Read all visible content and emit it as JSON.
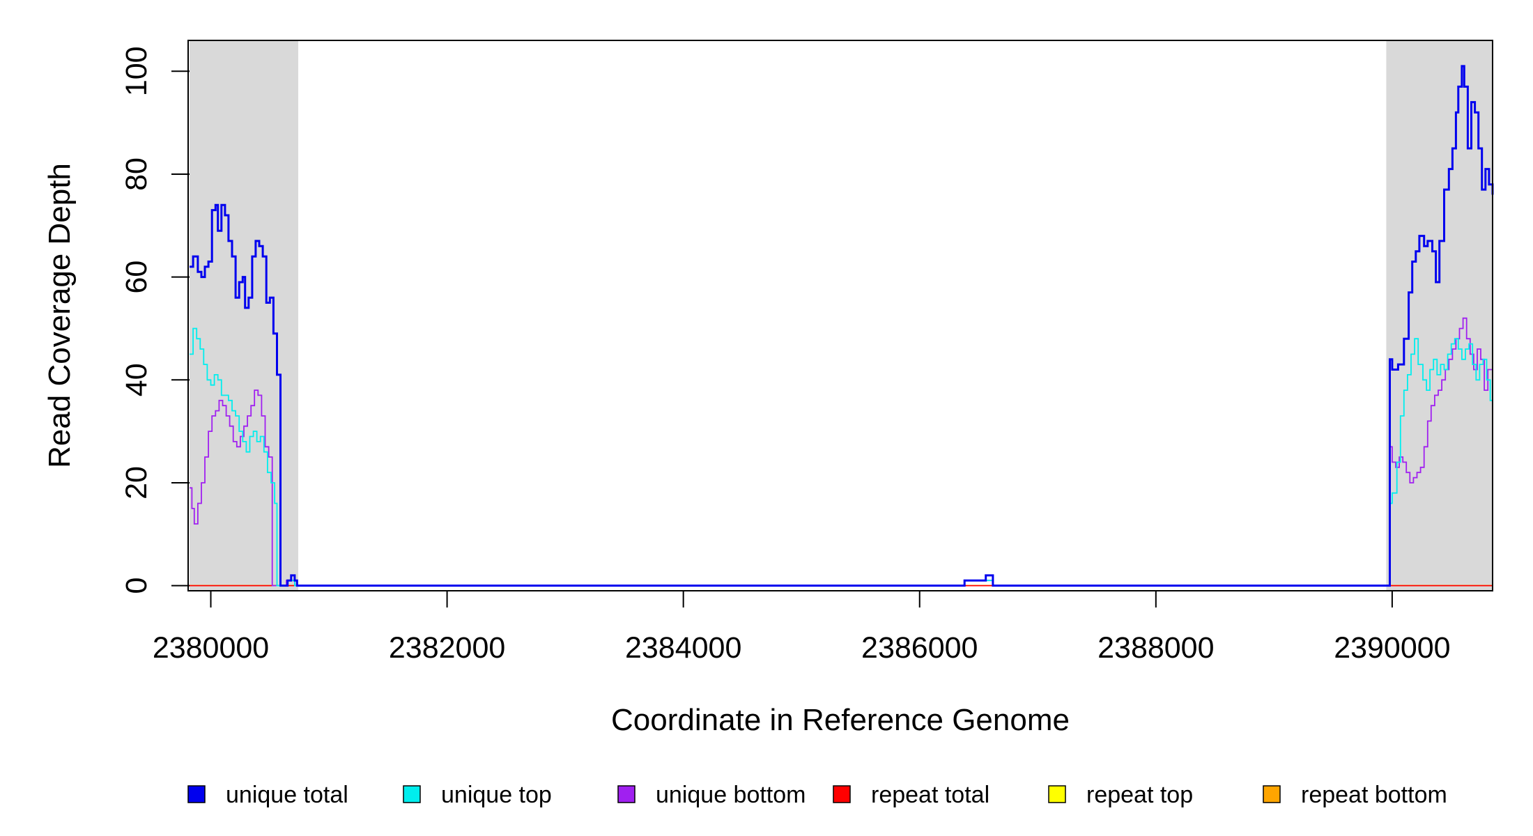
{
  "chart_data": {
    "type": "line",
    "title": "",
    "xlabel": "Coordinate in Reference Genome",
    "ylabel": "Read Coverage Depth",
    "xlim": [
      2379820,
      2390850
    ],
    "ylim": [
      -1,
      106
    ],
    "x_ticks": [
      2380000,
      2382000,
      2384000,
      2386000,
      2388000,
      2390000
    ],
    "x_tick_labels": [
      "2380000",
      "2382000",
      "2384000",
      "2386000",
      "2388000",
      "2390000"
    ],
    "y_ticks": [
      0,
      20,
      40,
      60,
      80,
      100
    ],
    "y_tick_labels": [
      "0",
      "20",
      "40",
      "60",
      "80",
      "100"
    ],
    "shaded_regions": [
      {
        "x0": 2379820,
        "x1": 2380740,
        "color": "#d9d9d9"
      },
      {
        "x0": 2389950,
        "x1": 2390850,
        "color": "#d9d9d9"
      }
    ],
    "grid": false,
    "legend_position": "bottom",
    "series": [
      {
        "name": "unique total",
        "color": "#0000ee",
        "x": [
          2379820,
          2379850,
          2379890,
          2379920,
          2379950,
          2379980,
          2380010,
          2380040,
          2380060,
          2380090,
          2380120,
          2380150,
          2380180,
          2380210,
          2380240,
          2380270,
          2380290,
          2380320,
          2380350,
          2380380,
          2380410,
          2380440,
          2380470,
          2380500,
          2380530,
          2380560,
          2380590,
          2380620,
          2380650,
          2380680,
          2380710,
          2380730,
          2380750,
          2386300,
          2386380,
          2386560,
          2386620,
          2389960,
          2389980,
          2390000,
          2390050,
          2390100,
          2390140,
          2390170,
          2390200,
          2390230,
          2390270,
          2390300,
          2390340,
          2390370,
          2390400,
          2390440,
          2390480,
          2390510,
          2390540,
          2390560,
          2390590,
          2390610,
          2390640,
          2390670,
          2390700,
          2390730,
          2390760,
          2390790,
          2390820,
          2390850
        ],
        "y": [
          62,
          64,
          61,
          60,
          62,
          63,
          73,
          74,
          69,
          74,
          72,
          67,
          64,
          56,
          59,
          60,
          54,
          56,
          64,
          67,
          66,
          64,
          55,
          56,
          49,
          41,
          0,
          0,
          1,
          2,
          1,
          0,
          0,
          0,
          1,
          2,
          0,
          0,
          44,
          42,
          43,
          48,
          57,
          63,
          65,
          68,
          66,
          67,
          65,
          59,
          67,
          77,
          81,
          85,
          92,
          97,
          101,
          97,
          85,
          94,
          92,
          85,
          77,
          81,
          78,
          76
        ]
      },
      {
        "name": "unique top",
        "color": "#00eeee",
        "x": [
          2379820,
          2379850,
          2379880,
          2379910,
          2379940,
          2379970,
          2380000,
          2380030,
          2380060,
          2380090,
          2380120,
          2380150,
          2380180,
          2380210,
          2380240,
          2380270,
          2380300,
          2380330,
          2380360,
          2380390,
          2380420,
          2380450,
          2380480,
          2380510,
          2380540,
          2380560,
          2380590,
          2380620,
          2380650,
          2380680,
          2380710,
          2380730,
          2380750,
          2386290,
          2386380,
          2386560,
          2386620,
          2389960,
          2389980,
          2390000,
          2390040,
          2390070,
          2390100,
          2390130,
          2390160,
          2390190,
          2390220,
          2390260,
          2390290,
          2390320,
          2390350,
          2390380,
          2390410,
          2390440,
          2390470,
          2390500,
          2390530,
          2390560,
          2390590,
          2390620,
          2390650,
          2390680,
          2390710,
          2390740,
          2390770,
          2390800,
          2390830,
          2390850
        ],
        "y": [
          45,
          50,
          48,
          46,
          43,
          40,
          39,
          41,
          40,
          37,
          37,
          36,
          34,
          33,
          30,
          28,
          26,
          29,
          30,
          28,
          29,
          26,
          22,
          20,
          16,
          0,
          0,
          0,
          1,
          1,
          0,
          0,
          0,
          0,
          1,
          1,
          0,
          0,
          16,
          18,
          24,
          33,
          38,
          41,
          45,
          48,
          43,
          40,
          38,
          42,
          44,
          41,
          43,
          42,
          45,
          47,
          48,
          46,
          44,
          46,
          47,
          43,
          40,
          43,
          44,
          40,
          36,
          34
        ]
      },
      {
        "name": "unique bottom",
        "color": "#a020f0",
        "x": [
          2379820,
          2379840,
          2379860,
          2379890,
          2379920,
          2379950,
          2379980,
          2380010,
          2380040,
          2380070,
          2380100,
          2380130,
          2380160,
          2380190,
          2380220,
          2380250,
          2380280,
          2380310,
          2380340,
          2380370,
          2380400,
          2380430,
          2380460,
          2380490,
          2380520,
          2380550,
          2380570,
          2380600,
          2380640,
          2380680,
          2380710,
          2380730,
          2380750,
          2386300,
          2386380,
          2386560,
          2386620,
          2389960,
          2389980,
          2390000,
          2390030,
          2390060,
          2390090,
          2390120,
          2390150,
          2390180,
          2390210,
          2390240,
          2390270,
          2390300,
          2390330,
          2390360,
          2390390,
          2390420,
          2390450,
          2390480,
          2390510,
          2390540,
          2390570,
          2390600,
          2390630,
          2390660,
          2390690,
          2390720,
          2390750,
          2390780,
          2390810,
          2390850
        ],
        "y": [
          19,
          15,
          12,
          16,
          20,
          25,
          30,
          33,
          34,
          36,
          35,
          33,
          31,
          28,
          27,
          29,
          31,
          33,
          35,
          38,
          37,
          33,
          27,
          25,
          0,
          0,
          0,
          0,
          1,
          1,
          0,
          0,
          0,
          0,
          1,
          1,
          0,
          0,
          27,
          24,
          23,
          25,
          24,
          22,
          20,
          21,
          22,
          23,
          27,
          32,
          35,
          37,
          38,
          40,
          42,
          44,
          46,
          48,
          50,
          52,
          48,
          45,
          42,
          46,
          44,
          38,
          42,
          40
        ]
      },
      {
        "name": "repeat total",
        "color": "#ff0000",
        "x": [
          2379820,
          2390850
        ],
        "y": [
          0,
          0
        ]
      },
      {
        "name": "repeat top",
        "color": "#ffff00",
        "x": [
          2379820,
          2390850
        ],
        "y": [
          0,
          0
        ]
      },
      {
        "name": "repeat bottom",
        "color": "#ffa500",
        "x": [
          2379820,
          2390850
        ],
        "y": [
          0,
          0
        ]
      }
    ]
  }
}
